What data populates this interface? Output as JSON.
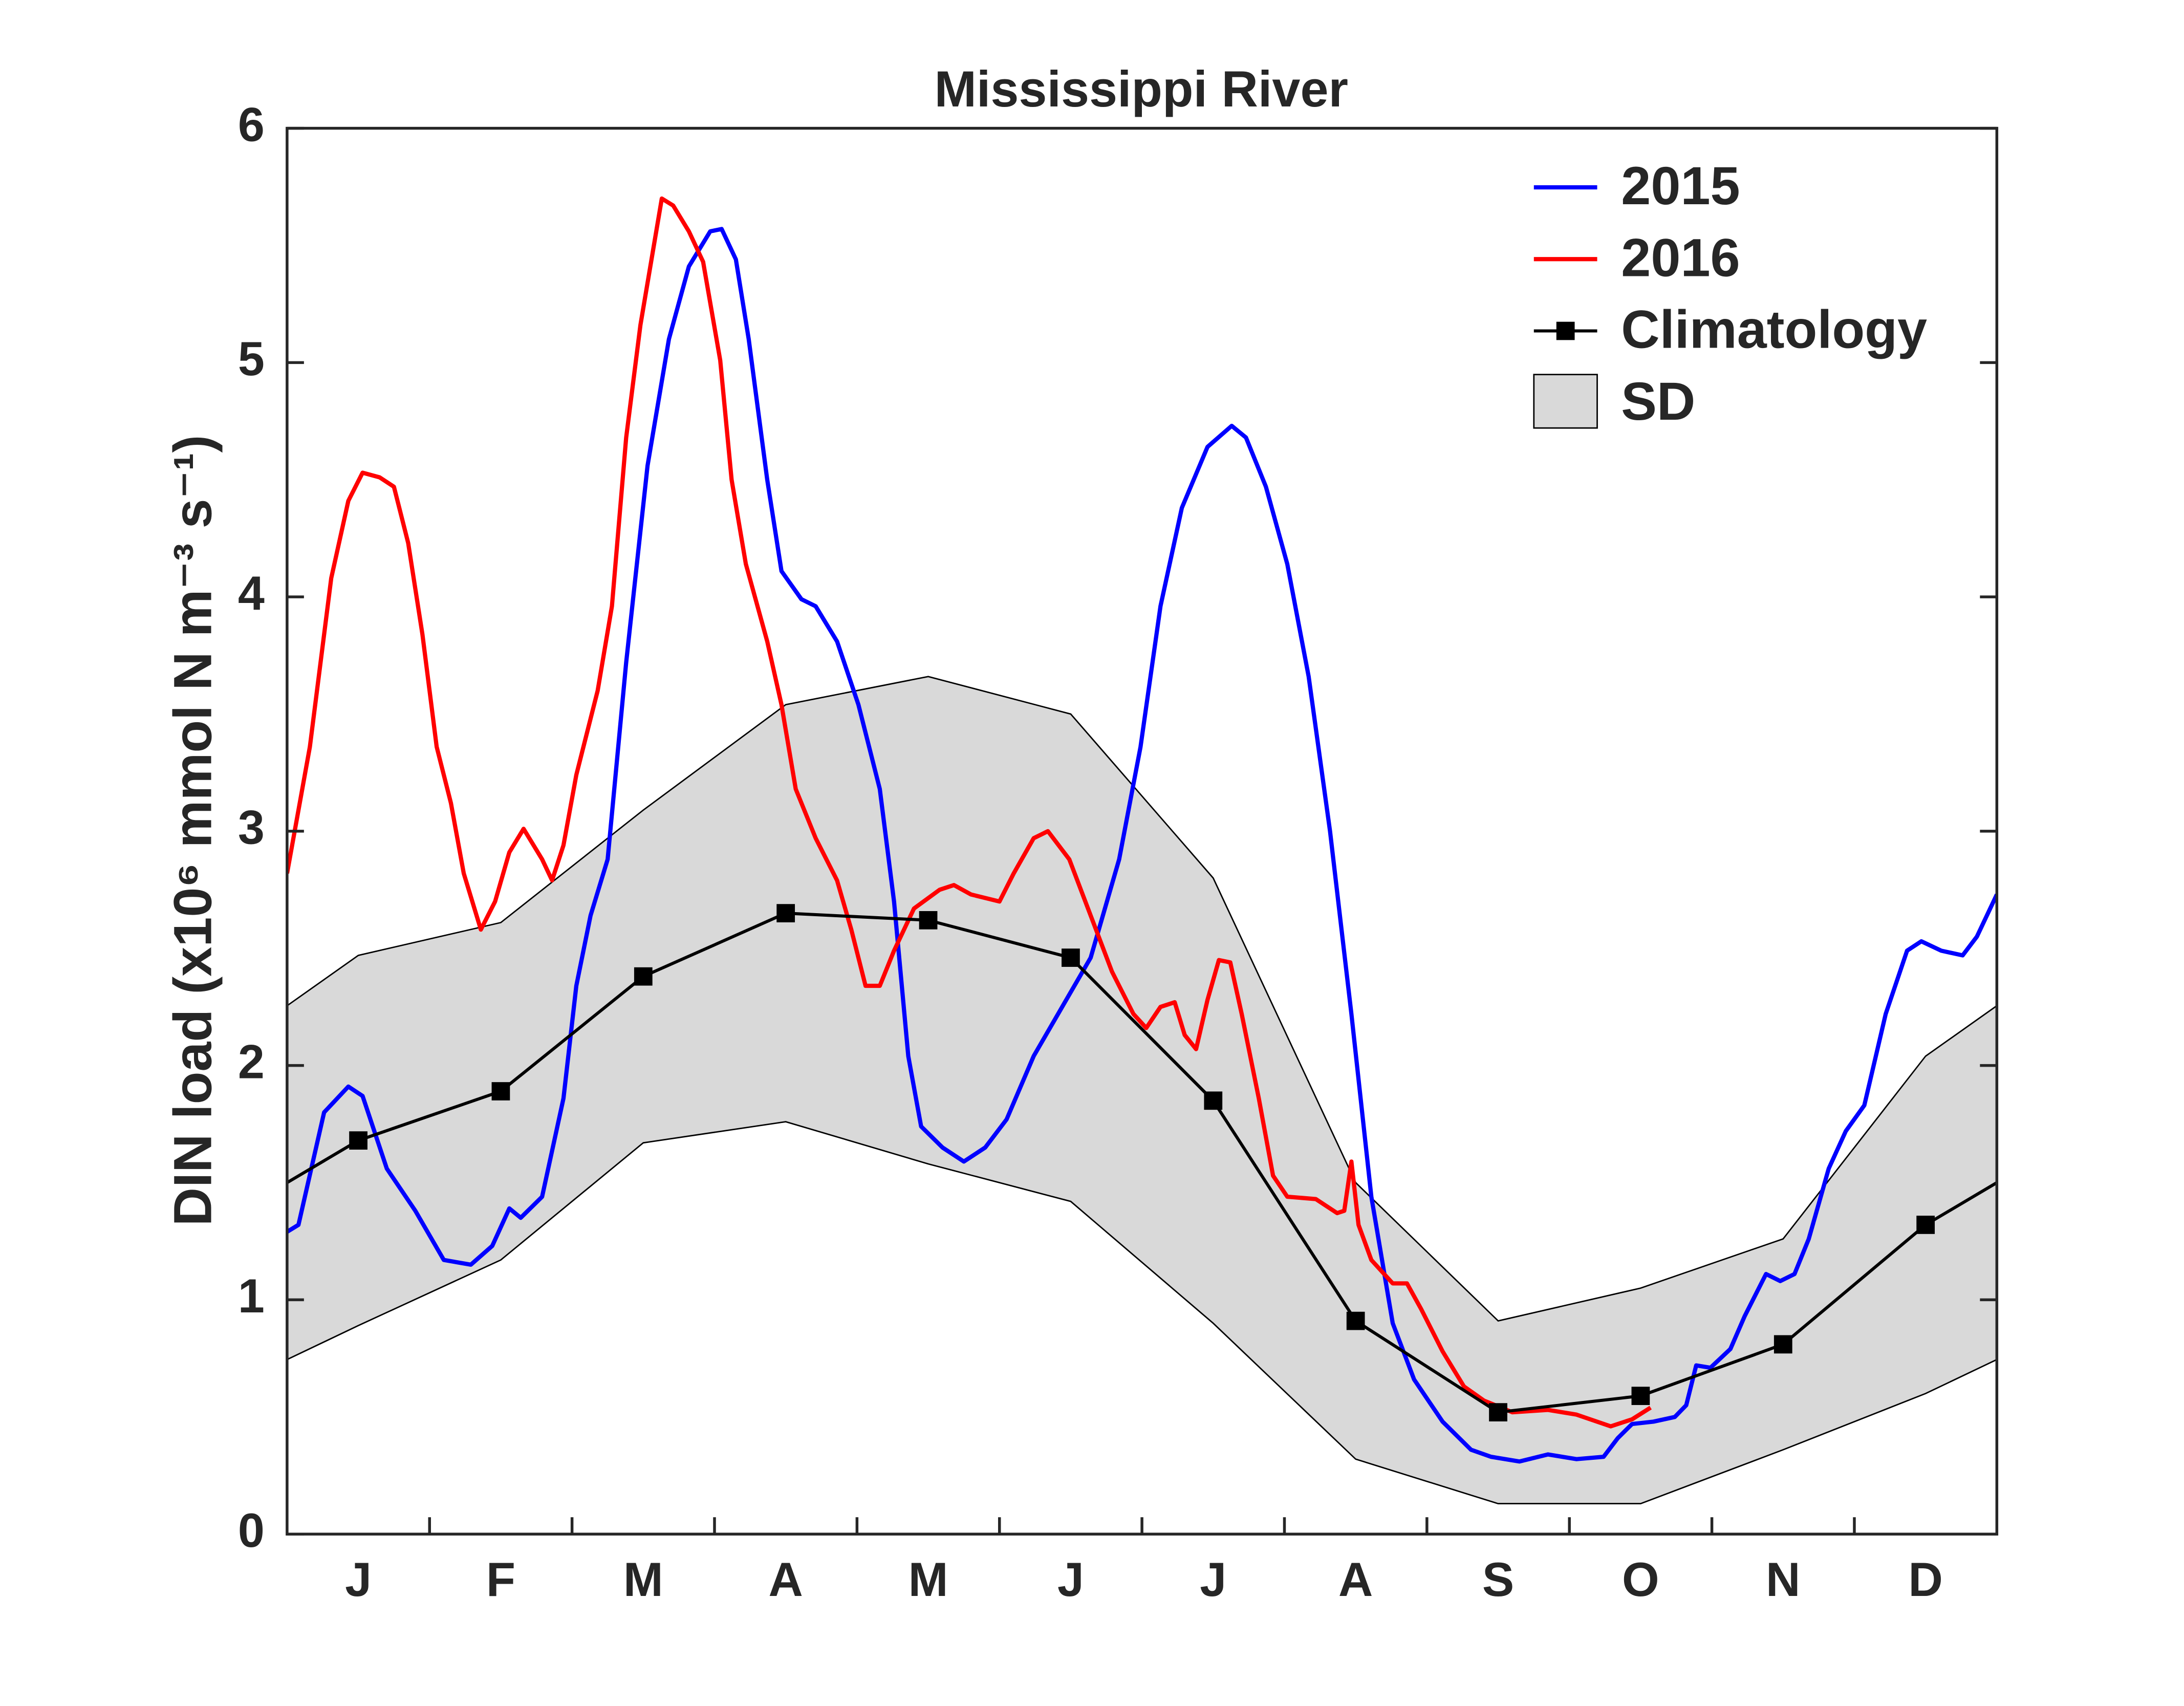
{
  "chart_data": {
    "type": "line",
    "title": "Mississippi River",
    "y_label": "DIN load (x10⁶ mmol N m⁻³ s⁻¹)",
    "categories": [
      "J",
      "F",
      "M",
      "A",
      "M",
      "J",
      "J",
      "A",
      "S",
      "O",
      "N",
      "D"
    ],
    "xlim": [
      0,
      12
    ],
    "ylim": [
      0,
      6
    ],
    "yticks": [
      0,
      1,
      2,
      3,
      4,
      5,
      6
    ],
    "legend": "upper right",
    "series": [
      {
        "name": "2015",
        "color": "#0000ff",
        "x": [
          0,
          0.08,
          0.26,
          0.43,
          0.53,
          0.7,
          0.9,
          1.1,
          1.29,
          1.44,
          1.56,
          1.64,
          1.79,
          1.94,
          2.03,
          2.13,
          2.25,
          2.38,
          2.53,
          2.68,
          2.82,
          2.97,
          3.05,
          3.15,
          3.24,
          3.37,
          3.47,
          3.61,
          3.71,
          3.86,
          4.01,
          4.16,
          4.26,
          4.36,
          4.45,
          4.6,
          4.75,
          4.9,
          5.05,
          5.24,
          5.44,
          5.64,
          5.84,
          5.99,
          6.13,
          6.28,
          6.46,
          6.63,
          6.73,
          6.87,
          7.02,
          7.17,
          7.32,
          7.47,
          7.61,
          7.76,
          7.91,
          8.11,
          8.31,
          8.45,
          8.65,
          8.85,
          9.05,
          9.24,
          9.34,
          9.44,
          9.59,
          9.74,
          9.82,
          9.89,
          9.99,
          10.13,
          10.23,
          10.38,
          10.48,
          10.58,
          10.68,
          10.82,
          10.94,
          11.07,
          11.22,
          11.37,
          11.47,
          11.61,
          11.76,
          11.86,
          12
        ],
        "values": [
          1.29,
          1.32,
          1.8,
          1.91,
          1.87,
          1.56,
          1.38,
          1.17,
          1.15,
          1.23,
          1.39,
          1.35,
          1.44,
          1.86,
          2.34,
          2.64,
          2.88,
          3.72,
          4.56,
          5.1,
          5.41,
          5.56,
          5.57,
          5.44,
          5.1,
          4.5,
          4.11,
          3.99,
          3.96,
          3.81,
          3.54,
          3.18,
          2.7,
          2.04,
          1.74,
          1.65,
          1.59,
          1.65,
          1.77,
          2.04,
          2.25,
          2.46,
          2.88,
          3.36,
          3.96,
          4.38,
          4.64,
          4.73,
          4.68,
          4.47,
          4.14,
          3.66,
          3.0,
          2.22,
          1.44,
          0.9,
          0.66,
          0.48,
          0.36,
          0.33,
          0.31,
          0.34,
          0.32,
          0.33,
          0.41,
          0.47,
          0.48,
          0.5,
          0.55,
          0.72,
          0.71,
          0.79,
          0.93,
          1.11,
          1.08,
          1.11,
          1.26,
          1.56,
          1.72,
          1.83,
          2.22,
          2.49,
          2.53,
          2.49,
          2.47,
          2.55,
          2.73
        ]
      },
      {
        "name": "2016",
        "color": "#ff0000",
        "x": [
          0,
          0.16,
          0.31,
          0.43,
          0.53,
          0.65,
          0.75,
          0.85,
          0.95,
          1.05,
          1.15,
          1.24,
          1.36,
          1.46,
          1.56,
          1.66,
          1.79,
          1.86,
          1.94,
          2.03,
          2.18,
          2.28,
          2.38,
          2.48,
          2.58,
          2.63,
          2.71,
          2.82,
          2.92,
          3.04,
          3.12,
          3.22,
          3.37,
          3.47,
          3.57,
          3.71,
          3.86,
          3.96,
          4.06,
          4.16,
          4.26,
          4.4,
          4.58,
          4.68,
          4.8,
          5.0,
          5.1,
          5.24,
          5.34,
          5.49,
          5.64,
          5.79,
          5.94,
          6.03,
          6.13,
          6.23,
          6.3,
          6.38,
          6.46,
          6.54,
          6.62,
          6.7,
          6.82,
          6.92,
          7.02,
          7.22,
          7.37,
          7.42,
          7.47,
          7.52,
          7.61,
          7.76,
          7.86,
          7.96,
          8.11,
          8.26,
          8.4,
          8.6,
          8.85,
          9.05,
          9.29,
          9.44,
          9.57
        ],
        "values": [
          2.82,
          3.36,
          4.08,
          4.41,
          4.53,
          4.51,
          4.47,
          4.23,
          3.84,
          3.36,
          3.12,
          2.82,
          2.58,
          2.7,
          2.91,
          3.01,
          2.88,
          2.79,
          2.94,
          3.24,
          3.6,
          3.96,
          4.68,
          5.16,
          5.52,
          5.7,
          5.67,
          5.56,
          5.43,
          5.01,
          4.5,
          4.14,
          3.81,
          3.54,
          3.18,
          2.97,
          2.79,
          2.58,
          2.34,
          2.34,
          2.49,
          2.67,
          2.75,
          2.77,
          2.73,
          2.7,
          2.82,
          2.97,
          3.0,
          2.88,
          2.64,
          2.4,
          2.22,
          2.16,
          2.25,
          2.27,
          2.13,
          2.07,
          2.28,
          2.45,
          2.44,
          2.22,
          1.86,
          1.53,
          1.44,
          1.43,
          1.37,
          1.38,
          1.59,
          1.32,
          1.17,
          1.07,
          1.07,
          0.96,
          0.78,
          0.63,
          0.57,
          0.52,
          0.53,
          0.51,
          0.46,
          0.49,
          0.54
        ]
      },
      {
        "name": "Climatology",
        "color": "#000000",
        "values": [
          1.68,
          1.89,
          2.38,
          2.65,
          2.62,
          2.46,
          1.85,
          0.91,
          0.52,
          0.59,
          0.81,
          1.32
        ]
      },
      {
        "name": "SD",
        "color": "#d9d9d9",
        "values": [
          0.79,
          0.72,
          0.71,
          0.89,
          1.04,
          1.04,
          0.95,
          0.59,
          0.39,
          0.46,
          0.45,
          0.72
        ]
      }
    ]
  }
}
